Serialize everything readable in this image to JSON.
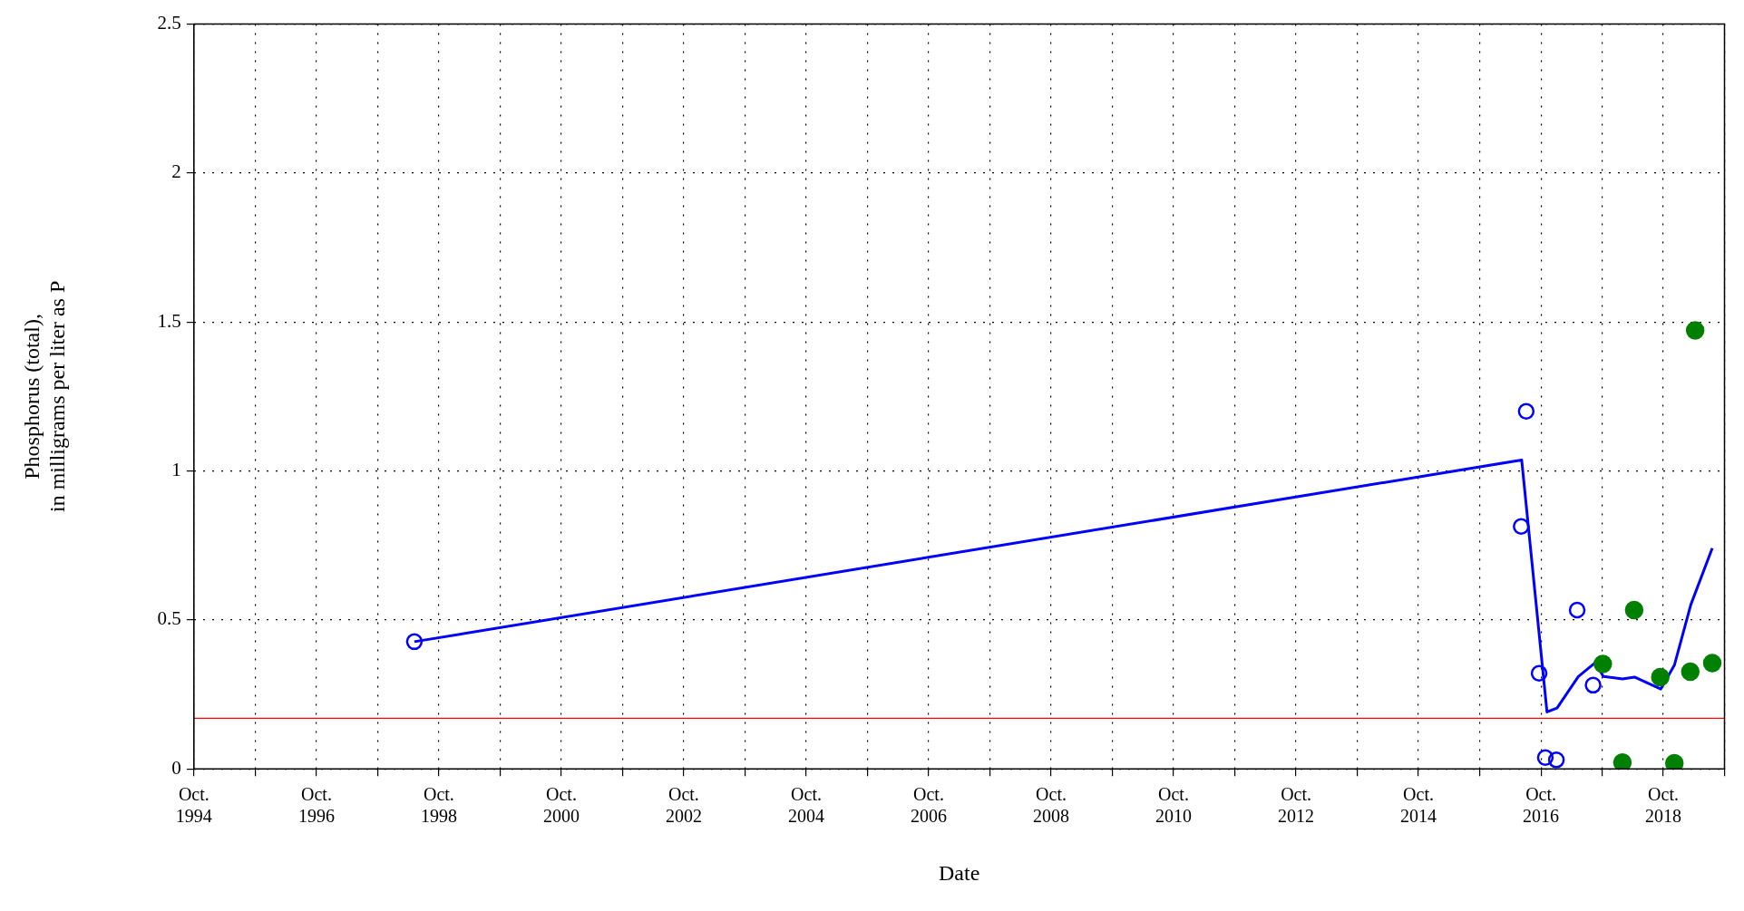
{
  "chart_data": {
    "type": "scatter",
    "xlabel": "Date",
    "ylabel": "Phosphorus (total), in milligrams per liter as P",
    "xlim": [
      "1994-10-01",
      "2019-10-01"
    ],
    "ylim": [
      0,
      2.5
    ],
    "xticks": [
      {
        "value": "1994-10-01",
        "label": "Oct. 1994"
      },
      {
        "value": "1995-10-01",
        "label": null
      },
      {
        "value": "1996-10-01",
        "label": "Oct. 1996"
      },
      {
        "value": "1997-10-01",
        "label": null
      },
      {
        "value": "1998-10-01",
        "label": "Oct. 1998"
      },
      {
        "value": "1999-10-01",
        "label": null
      },
      {
        "value": "2000-10-01",
        "label": "Oct. 2000"
      },
      {
        "value": "2001-10-01",
        "label": null
      },
      {
        "value": "2002-10-01",
        "label": "Oct. 2002"
      },
      {
        "value": "2003-10-01",
        "label": null
      },
      {
        "value": "2004-10-01",
        "label": "Oct. 2004"
      },
      {
        "value": "2005-10-01",
        "label": null
      },
      {
        "value": "2006-10-01",
        "label": "Oct. 2006"
      },
      {
        "value": "2007-10-01",
        "label": null
      },
      {
        "value": "2008-10-01",
        "label": "Oct. 2008"
      },
      {
        "value": "2009-10-01",
        "label": null
      },
      {
        "value": "2010-10-01",
        "label": "Oct. 2010"
      },
      {
        "value": "2011-10-01",
        "label": null
      },
      {
        "value": "2012-10-01",
        "label": "Oct. 2012"
      },
      {
        "value": "2013-10-01",
        "label": null
      },
      {
        "value": "2014-10-01",
        "label": "Oct. 2014"
      },
      {
        "value": "2015-10-01",
        "label": null
      },
      {
        "value": "2016-10-01",
        "label": "Oct. 2016"
      },
      {
        "value": "2017-10-01",
        "label": null
      },
      {
        "value": "2018-10-01",
        "label": "Oct. 2018"
      },
      {
        "value": "2019-10-01",
        "label": null
      }
    ],
    "yticks": [
      0,
      0.5,
      1,
      1.5,
      2,
      2.5
    ],
    "grid": true,
    "legend": false,
    "ref_lines": [
      {
        "axis": "y",
        "value": 0.17,
        "color": "#ff0000"
      }
    ],
    "series": [
      {
        "marker": "circle",
        "color": "#0000ff",
        "x": [
          "1998-05-08",
          "2016-06-05",
          "2016-07-05",
          "2016-09-20",
          "2016-10-27",
          "2017-01-01",
          "2017-05-05",
          "2017-08-08"
        ],
        "values": [
          0.427,
          0.814,
          1.2,
          0.321,
          0.038,
          0.03,
          0.533,
          0.281
        ]
      },
      {
        "marker": "circle",
        "color": "#008000",
        "x": [
          "2017-10-05",
          "2018-01-30",
          "2018-04-10",
          "2018-09-13",
          "2018-12-06",
          "2019-03-11",
          "2019-04-09",
          "2019-07-20"
        ],
        "values": [
          0.352,
          0.021,
          0.533,
          0.308,
          0.019,
          0.326,
          1.472,
          0.355
        ]
      },
      {
        "type": "line",
        "marker": "none",
        "color": "#0000ff",
        "x": [
          "1998-05-08",
          "2016-06-08",
          "2016-11-06",
          "2017-01-05",
          "2017-05-12",
          "2017-08-22",
          "2017-10-08",
          "2018-01-30",
          "2018-04-12",
          "2018-09-16",
          "2018-12-06",
          "2019-03-14",
          "2019-07-20"
        ],
        "values": [
          0.427,
          1.037,
          0.191,
          0.204,
          0.31,
          0.357,
          0.31,
          0.302,
          0.308,
          0.268,
          0.348,
          0.551,
          0.741
        ]
      }
    ]
  }
}
